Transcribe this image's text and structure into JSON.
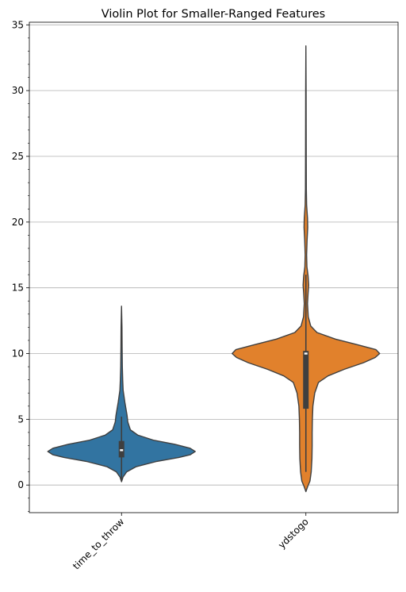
{
  "chart_data": {
    "type": "violin",
    "title": "Violin Plot for Smaller-Ranged Features",
    "xlabel": "",
    "ylabel": "",
    "categories": [
      "time_to_throw",
      "ydstogo"
    ],
    "ylim": [
      -2.1,
      35.2
    ],
    "yticks": [
      0,
      5,
      10,
      15,
      20,
      25,
      30,
      35
    ],
    "grid": "y-major",
    "series": [
      {
        "category": "time_to_throw",
        "color": "#3274a1",
        "min": 0.25,
        "max": 13.6,
        "q1": 2.1,
        "median": 2.65,
        "q3": 3.35,
        "whisker_low": 0.3,
        "whisker_high": 5.2,
        "density_profile": [
          [
            0.25,
            0.0
          ],
          [
            0.6,
            0.02
          ],
          [
            1.0,
            0.07
          ],
          [
            1.4,
            0.2
          ],
          [
            1.8,
            0.48
          ],
          [
            2.1,
            0.78
          ],
          [
            2.3,
            0.93
          ],
          [
            2.55,
            1.0
          ],
          [
            2.8,
            0.93
          ],
          [
            3.1,
            0.72
          ],
          [
            3.4,
            0.44
          ],
          [
            3.8,
            0.22
          ],
          [
            4.2,
            0.12
          ],
          [
            4.8,
            0.085
          ],
          [
            5.3,
            0.075
          ],
          [
            5.8,
            0.06
          ],
          [
            6.3,
            0.045
          ],
          [
            6.7,
            0.035
          ],
          [
            7.2,
            0.022
          ],
          [
            8.0,
            0.016
          ],
          [
            9.0,
            0.011
          ],
          [
            10.5,
            0.008
          ],
          [
            12.0,
            0.006
          ],
          [
            13.6,
            0.0
          ]
        ]
      },
      {
        "category": "ydstogo",
        "color": "#e1812c",
        "min": -0.5,
        "max": 33.4,
        "q1": 5.8,
        "median": 10.0,
        "q3": 10.2,
        "whisker_low": 1.0,
        "whisker_high": 16.0,
        "density_profile": [
          [
            -0.5,
            0.0
          ],
          [
            -0.1,
            0.025
          ],
          [
            0.3,
            0.055
          ],
          [
            1.0,
            0.072
          ],
          [
            2.0,
            0.082
          ],
          [
            3.0,
            0.085
          ],
          [
            4.0,
            0.085
          ],
          [
            5.0,
            0.088
          ],
          [
            6.0,
            0.095
          ],
          [
            7.0,
            0.12
          ],
          [
            7.8,
            0.17
          ],
          [
            8.3,
            0.3
          ],
          [
            8.8,
            0.52
          ],
          [
            9.3,
            0.78
          ],
          [
            9.7,
            0.94
          ],
          [
            10.0,
            1.0
          ],
          [
            10.3,
            0.95
          ],
          [
            10.7,
            0.68
          ],
          [
            11.1,
            0.4
          ],
          [
            11.6,
            0.15
          ],
          [
            12.1,
            0.065
          ],
          [
            12.8,
            0.032
          ],
          [
            13.8,
            0.022
          ],
          [
            14.6,
            0.03
          ],
          [
            15.2,
            0.038
          ],
          [
            15.9,
            0.03
          ],
          [
            16.6,
            0.014
          ],
          [
            17.5,
            0.01
          ],
          [
            18.6,
            0.016
          ],
          [
            19.6,
            0.025
          ],
          [
            20.3,
            0.022
          ],
          [
            21.3,
            0.01
          ],
          [
            22.5,
            0.006
          ],
          [
            24.5,
            0.005
          ],
          [
            27.0,
            0.004
          ],
          [
            30.0,
            0.003
          ],
          [
            33.4,
            0.0
          ]
        ]
      }
    ]
  }
}
